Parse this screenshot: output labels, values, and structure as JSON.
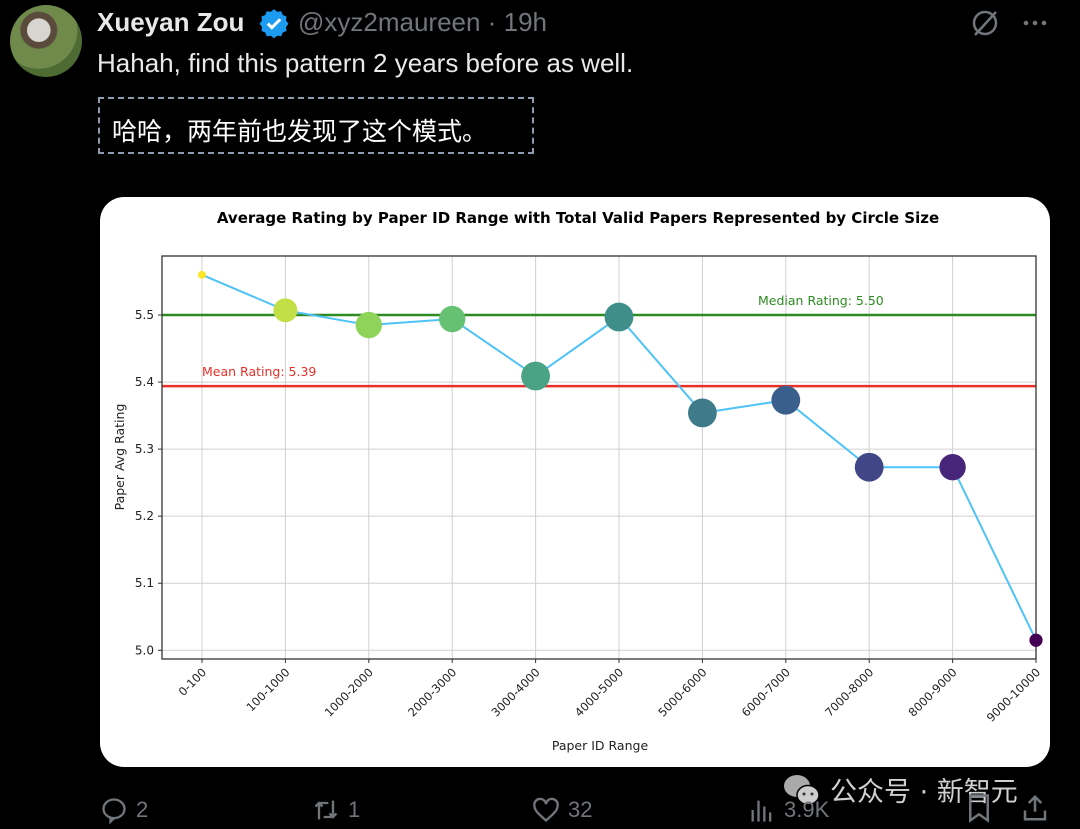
{
  "tweet": {
    "author_name": "Xueyan Zou",
    "handle": "@xyz2maureen",
    "separator": "·",
    "time": "19h",
    "text": "Hahah, find this pattern 2 years before as well.",
    "translation": "哈哈，两年前也发现了这个模式。",
    "verified_color": "#1d9bf0"
  },
  "actions": {
    "replies": "2",
    "reposts": "1",
    "likes": "32",
    "views": "3.9K"
  },
  "watermark": "公众号 · 新智元",
  "chart_data": {
    "type": "scatter",
    "title": "Average Rating by Paper ID Range with Total Valid Papers Represented by Circle Size",
    "xlabel": "Paper ID Range",
    "ylabel": "Paper Avg Rating",
    "categories": [
      "0-100",
      "100-1000",
      "1000-2000",
      "2000-3000",
      "3000-4000",
      "4000-5000",
      "5000-6000",
      "6000-7000",
      "7000-8000",
      "8000-9000",
      "9000-10000"
    ],
    "values": [
      5.56,
      5.507,
      5.485,
      5.494,
      5.409,
      5.497,
      5.354,
      5.373,
      5.273,
      5.273,
      5.015
    ],
    "relative_circle_size": [
      0.08,
      0.75,
      0.85,
      0.85,
      0.95,
      0.95,
      0.95,
      0.95,
      0.95,
      0.85,
      0.3
    ],
    "point_colors": [
      "#fde725",
      "#c2df47",
      "#8ed45b",
      "#67c172",
      "#4ba386",
      "#3f8e8a",
      "#3f7a8a",
      "#3a5f8c",
      "#414687",
      "#47267a",
      "#440154"
    ],
    "line_color": "#4fc3f7",
    "ylim": [
      4.987,
      5.588
    ],
    "yticks": [
      "5.0",
      "5.1",
      "5.2",
      "5.3",
      "5.4",
      "5.5"
    ],
    "grid": true,
    "reference_lines": [
      {
        "label": "Median Rating: 5.50",
        "value": 5.5,
        "color": "#2e8b22"
      },
      {
        "label": "Mean Rating: 5.39",
        "value": 5.394,
        "color": "#e8302a"
      }
    ]
  }
}
